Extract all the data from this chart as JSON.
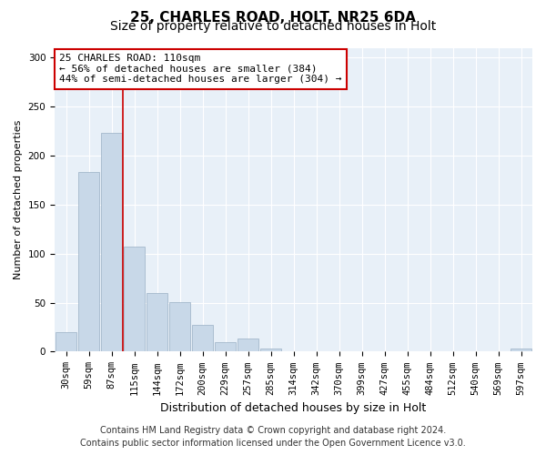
{
  "title1": "25, CHARLES ROAD, HOLT, NR25 6DA",
  "title2": "Size of property relative to detached houses in Holt",
  "xlabel": "Distribution of detached houses by size in Holt",
  "ylabel": "Number of detached properties",
  "bar_labels": [
    "30sqm",
    "59sqm",
    "87sqm",
    "115sqm",
    "144sqm",
    "172sqm",
    "200sqm",
    "229sqm",
    "257sqm",
    "285sqm",
    "314sqm",
    "342sqm",
    "370sqm",
    "399sqm",
    "427sqm",
    "455sqm",
    "484sqm",
    "512sqm",
    "540sqm",
    "569sqm",
    "597sqm"
  ],
  "bar_values": [
    20,
    183,
    223,
    107,
    60,
    51,
    27,
    10,
    13,
    3,
    0,
    0,
    0,
    0,
    0,
    0,
    0,
    0,
    0,
    0,
    3
  ],
  "bar_color": "#c8d8e8",
  "bar_edgecolor": "#9ab0c4",
  "vline_x_idx": 2.5,
  "vline_color": "#cc0000",
  "annotation_line1": "25 CHARLES ROAD: 110sqm",
  "annotation_line2": "← 56% of detached houses are smaller (384)",
  "annotation_line3": "44% of semi-detached houses are larger (304) →",
  "annotation_boxcolor": "white",
  "annotation_edgecolor": "#cc0000",
  "ylim": [
    0,
    310
  ],
  "yticks": [
    0,
    50,
    100,
    150,
    200,
    250,
    300
  ],
  "bg_color": "#e8f0f8",
  "footer_line1": "Contains HM Land Registry data © Crown copyright and database right 2024.",
  "footer_line2": "Contains public sector information licensed under the Open Government Licence v3.0.",
  "title1_fontsize": 11,
  "title2_fontsize": 10,
  "xlabel_fontsize": 9,
  "ylabel_fontsize": 8,
  "tick_fontsize": 7.5,
  "annotation_fontsize": 8,
  "footer_fontsize": 7
}
